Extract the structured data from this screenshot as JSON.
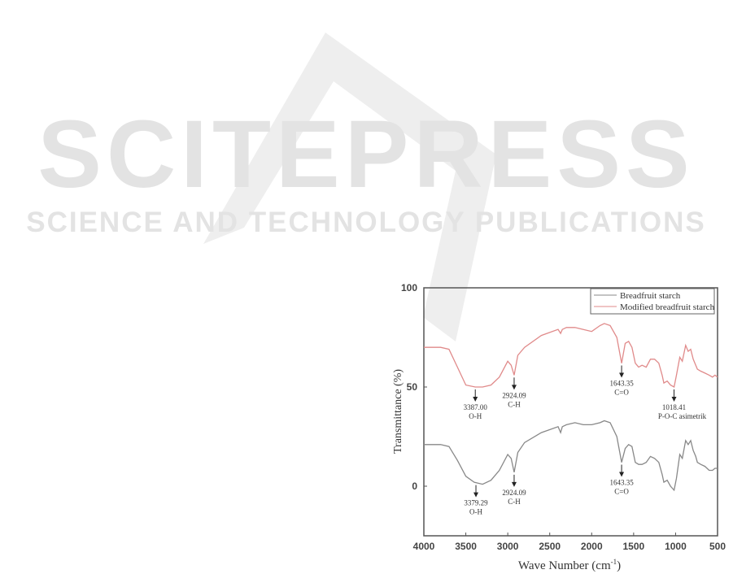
{
  "watermark": {
    "title": "SCITEPRESS",
    "subtitle": "SCIENCE AND TECHNOLOGY PUBLICATIONS",
    "color": "#e3e3e3"
  },
  "chart_data": {
    "type": "line",
    "title": "",
    "xlabel": "Wave Number (cm-1)",
    "xlabel_base": "Wave Number (cm",
    "xlabel_sup": "-1",
    "xlabel_end": ")",
    "ylabel": "Transmittance (%)",
    "xlim": [
      4000,
      500
    ],
    "ylim": [
      -25,
      100
    ],
    "x_reversed": true,
    "xticks": [
      4000,
      3500,
      3000,
      2500,
      2000,
      1500,
      1000,
      500
    ],
    "yticks": [
      0,
      50,
      100
    ],
    "grid": false,
    "legend_position": "top-right",
    "series": [
      {
        "name": "Breadfruit starch",
        "color": "#888888",
        "x": [
          4000,
          3800,
          3700,
          3600,
          3500,
          3400,
          3300,
          3200,
          3100,
          3000,
          2960,
          2924,
          2880,
          2800,
          2600,
          2400,
          2370,
          2350,
          2300,
          2200,
          2100,
          2000,
          1900,
          1850,
          1780,
          1700,
          1643,
          1600,
          1560,
          1520,
          1480,
          1440,
          1400,
          1350,
          1300,
          1250,
          1200,
          1160,
          1140,
          1100,
          1060,
          1018,
          990,
          950,
          920,
          880,
          850,
          820,
          790,
          760,
          740,
          700,
          650,
          600,
          560,
          530,
          500
        ],
        "y": [
          21,
          21,
          20,
          13,
          5,
          2,
          1,
          3,
          8,
          16,
          14,
          7,
          17,
          22,
          27,
          30,
          27,
          30,
          31,
          32,
          31,
          31,
          32,
          33,
          32,
          25,
          12,
          19,
          21,
          20,
          12,
          11,
          11,
          12,
          15,
          14,
          12,
          6,
          2,
          3,
          0,
          -2,
          4,
          16,
          14,
          23,
          21,
          23,
          18,
          15,
          12,
          11,
          10,
          8,
          8,
          9,
          9
        ]
      },
      {
        "name": "Modified breadfruit starch",
        "color": "#e08a8a",
        "x": [
          4000,
          3800,
          3700,
          3600,
          3500,
          3387,
          3300,
          3200,
          3100,
          3000,
          2960,
          2924,
          2880,
          2800,
          2600,
          2400,
          2370,
          2350,
          2300,
          2200,
          2100,
          2000,
          1900,
          1850,
          1780,
          1700,
          1643,
          1600,
          1560,
          1520,
          1480,
          1440,
          1400,
          1350,
          1300,
          1250,
          1200,
          1160,
          1140,
          1100,
          1060,
          1018,
          990,
          950,
          920,
          880,
          850,
          820,
          790,
          760,
          740,
          700,
          650,
          600,
          560,
          530,
          500
        ],
        "y": [
          70,
          70,
          69,
          60,
          51,
          50,
          50,
          51,
          55,
          63,
          61,
          56,
          66,
          70,
          76,
          79,
          77,
          79,
          80,
          80,
          79,
          78,
          81,
          82,
          81,
          75,
          62,
          72,
          73,
          70,
          62,
          60,
          61,
          60,
          64,
          64,
          62,
          56,
          52,
          53,
          51,
          50,
          56,
          65,
          63,
          71,
          68,
          69,
          64,
          61,
          59,
          58,
          57,
          56,
          55,
          56,
          55
        ]
      }
    ],
    "annotations": [
      {
        "series": 1,
        "x": 3387.0,
        "label": "3387.00",
        "group": "O-H"
      },
      {
        "series": 1,
        "x": 2924.09,
        "label": "2924.09",
        "group": "C-H"
      },
      {
        "series": 1,
        "x": 1643.35,
        "label": "1643.35",
        "group": "C=O"
      },
      {
        "series": 1,
        "x": 1018.41,
        "label": "1018.41",
        "group": "P-O-C  asimetrik"
      },
      {
        "series": 0,
        "x": 3379.29,
        "label": "3379.29",
        "group": "O-H"
      },
      {
        "series": 0,
        "x": 2924.09,
        "label": "2924.09",
        "group": "C-H"
      },
      {
        "series": 0,
        "x": 1643.35,
        "label": "1643.35",
        "group": "C=O"
      }
    ]
  }
}
